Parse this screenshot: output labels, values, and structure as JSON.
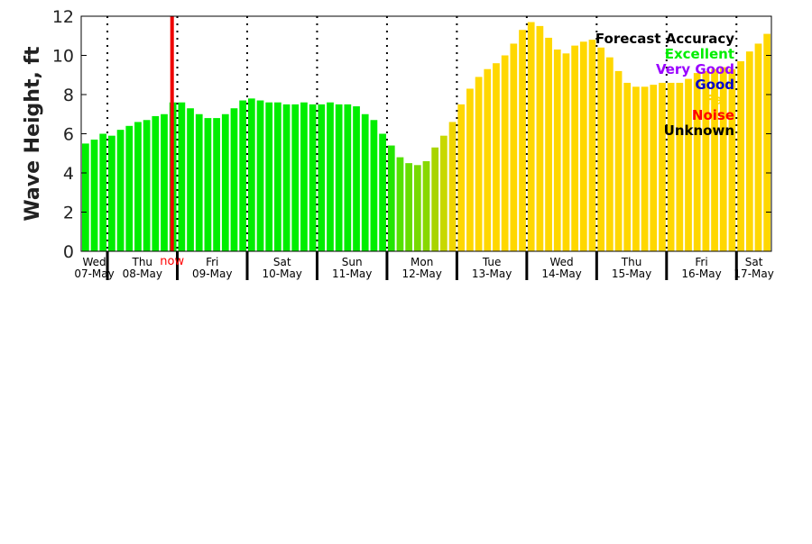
{
  "chart_data": {
    "type": "bar",
    "ylabel": "Wave Height, ft",
    "ylim": [
      0,
      12
    ],
    "yticks": [
      0,
      2,
      4,
      6,
      8,
      10,
      12
    ],
    "now_label": "now",
    "now_x": 10.4,
    "legend_position": "top-right",
    "legend": [
      {
        "label": "Forecast Accuracy",
        "color": "#000000"
      },
      {
        "label": "Excellent",
        "color": "#00ee00"
      },
      {
        "label": "Very Good",
        "color": "#9900ff"
      },
      {
        "label": "Good",
        "color": "#0000cc"
      },
      {
        "label": "Fair",
        "color": "#ffd700"
      },
      {
        "label": "Noise",
        "color": "#ff0000"
      },
      {
        "label": "Unknown",
        "color": "#000000"
      }
    ],
    "days": [
      {
        "dow": "Wed",
        "date": "07-May"
      },
      {
        "dow": "Thu",
        "date": "08-May"
      },
      {
        "dow": "Fri",
        "date": "09-May"
      },
      {
        "dow": "Sat",
        "date": "10-May"
      },
      {
        "dow": "Sun",
        "date": "11-May"
      },
      {
        "dow": "Mon",
        "date": "12-May"
      },
      {
        "dow": "Tue",
        "date": "13-May"
      },
      {
        "dow": "Wed",
        "date": "14-May"
      },
      {
        "dow": "Thu",
        "date": "15-May"
      },
      {
        "dow": "Fri",
        "date": "16-May"
      },
      {
        "dow": "Sat",
        "date": "17-May"
      }
    ],
    "values": [
      5.5,
      5.7,
      6.0,
      5.9,
      6.2,
      6.4,
      6.6,
      6.7,
      6.9,
      7.0,
      7.6,
      7.6,
      7.3,
      7.0,
      6.8,
      6.8,
      7.0,
      7.3,
      7.7,
      7.8,
      7.7,
      7.6,
      7.6,
      7.5,
      7.5,
      7.6,
      7.5,
      7.5,
      7.6,
      7.5,
      7.5,
      7.4,
      7.0,
      6.7,
      6.0,
      5.4,
      4.8,
      4.5,
      4.4,
      4.6,
      5.3,
      5.9,
      6.6,
      7.5,
      8.3,
      8.9,
      9.3,
      9.6,
      10.0,
      10.6,
      11.3,
      11.7,
      11.5,
      10.9,
      10.3,
      10.1,
      10.5,
      10.7,
      10.8,
      10.4,
      9.9,
      9.2,
      8.6,
      8.4,
      8.4,
      8.5,
      8.6,
      8.6,
      8.6,
      8.8,
      9.1,
      9.2,
      9.3,
      9.4,
      9.3,
      9.7,
      10.2,
      10.6,
      11.1
    ],
    "colors": [
      "#00ee00",
      "#00ee00",
      "#00ee00",
      "#00ee00",
      "#00ee00",
      "#00ee00",
      "#00ee00",
      "#00ee00",
      "#00ee00",
      "#00ee00",
      "#00ee00",
      "#00ee00",
      "#00ee00",
      "#00ee00",
      "#00ee00",
      "#00ee00",
      "#00ee00",
      "#00ee00",
      "#00ee00",
      "#00ee00",
      "#00ee00",
      "#00ee00",
      "#00ee00",
      "#00ee00",
      "#00ee00",
      "#00ee00",
      "#00ee00",
      "#00ee00",
      "#00ee00",
      "#00ee00",
      "#00ee00",
      "#00ee00",
      "#00ee00",
      "#00ee00",
      "#00ee00",
      "#22e600",
      "#55e200",
      "#66de00",
      "#77da00",
      "#88d800",
      "#a8d400",
      "#c8d800",
      "#f0d400",
      "#ffd700",
      "#ffd700",
      "#ffd700",
      "#ffd700",
      "#ffd700",
      "#ffd700",
      "#ffd700",
      "#ffd700",
      "#ffd700",
      "#ffd700",
      "#ffd700",
      "#ffd700",
      "#ffd700",
      "#ffd700",
      "#ffd700",
      "#ffd700",
      "#ffd700",
      "#ffd700",
      "#ffd700",
      "#ffd700",
      "#ffd700",
      "#ffd700",
      "#ffd700",
      "#ffd700",
      "#ffd700",
      "#ffd700",
      "#ffd700",
      "#ffd700",
      "#ffd700",
      "#ffd700",
      "#ffd700",
      "#ffd700",
      "#ffd700",
      "#ffd700",
      "#ffd700",
      "#ffd700"
    ]
  }
}
